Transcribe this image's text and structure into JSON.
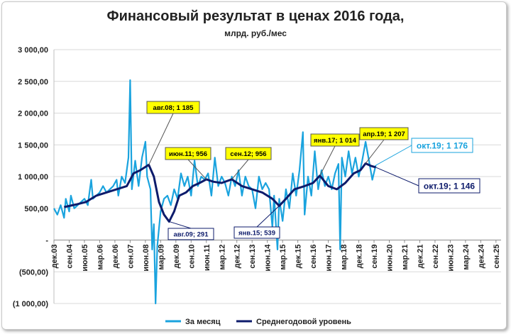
{
  "chart_data": {
    "type": "line",
    "title": "Финансовый результат в ценах 2016 года,",
    "subtitle": "млрд. руб./мес",
    "y_ticks": [
      "3 000,00",
      "2 500,00",
      "2 000,00",
      "1 500,00",
      "1 000,00",
      "500,00",
      "-",
      "(500,00)",
      "(1 000,00)"
    ],
    "ylim": [
      -1000,
      3000
    ],
    "x_range": [
      "2003-12",
      "2025-12"
    ],
    "x_ticks": [
      "дек.03",
      "сен.04",
      "июн.05",
      "мар.06",
      "дек.06",
      "сен.07",
      "июн.08",
      "мар.09",
      "дек.09",
      "сен.10",
      "июн.11",
      "мар.12",
      "дек.12",
      "сен.13",
      "июн.14",
      "мар.15",
      "дек.15",
      "сен.16",
      "июн.17",
      "мар.18",
      "дек.18",
      "сен.19",
      "июн.20",
      "мар.21",
      "дек.21",
      "сен.22",
      "июн.23",
      "мар.24",
      "дек.24",
      "сен.25"
    ],
    "legend_position": "bottom",
    "colors": {
      "monthly": "#1aa3de",
      "average": "#0d1b6b",
      "label_bg": "#ffff00"
    },
    "series": [
      {
        "name": "За месяц",
        "points": [
          [
            "2003-12",
            500
          ],
          [
            "2004-02",
            400
          ],
          [
            "2004-04",
            550
          ],
          [
            "2004-06",
            350
          ],
          [
            "2004-07",
            650
          ],
          [
            "2004-09",
            450
          ],
          [
            "2004-10",
            700
          ],
          [
            "2004-12",
            500
          ],
          [
            "2005-02",
            550
          ],
          [
            "2005-04",
            600
          ],
          [
            "2005-06",
            650
          ],
          [
            "2005-08",
            550
          ],
          [
            "2005-10",
            950
          ],
          [
            "2005-11",
            650
          ],
          [
            "2006-01",
            700
          ],
          [
            "2006-03",
            750
          ],
          [
            "2006-05",
            850
          ],
          [
            "2006-07",
            750
          ],
          [
            "2006-09",
            800
          ],
          [
            "2006-11",
            850
          ],
          [
            "2007-01",
            950
          ],
          [
            "2007-02",
            700
          ],
          [
            "2007-04",
            1000
          ],
          [
            "2007-06",
            900
          ],
          [
            "2007-08",
            1300
          ],
          [
            "2007-09",
            2520
          ],
          [
            "2007-10",
            800
          ],
          [
            "2007-12",
            1250
          ],
          [
            "2008-02",
            850
          ],
          [
            "2008-04",
            1300
          ],
          [
            "2008-06",
            1550
          ],
          [
            "2008-07",
            1000
          ],
          [
            "2008-09",
            800
          ],
          [
            "2008-10",
            -150
          ],
          [
            "2008-11",
            250
          ],
          [
            "2008-12",
            -1000
          ],
          [
            "2009-01",
            -100
          ],
          [
            "2009-03",
            450
          ],
          [
            "2009-05",
            650
          ],
          [
            "2009-07",
            700
          ],
          [
            "2009-09",
            550
          ],
          [
            "2009-11",
            800
          ],
          [
            "2010-01",
            650
          ],
          [
            "2010-03",
            1050
          ],
          [
            "2010-05",
            850
          ],
          [
            "2010-07",
            1000
          ],
          [
            "2010-09",
            700
          ],
          [
            "2010-11",
            1250
          ],
          [
            "2011-01",
            850
          ],
          [
            "2011-03",
            1000
          ],
          [
            "2011-05",
            950
          ],
          [
            "2011-07",
            1050
          ],
          [
            "2011-09",
            700
          ],
          [
            "2011-11",
            1300
          ],
          [
            "2012-01",
            850
          ],
          [
            "2012-03",
            1000
          ],
          [
            "2012-05",
            900
          ],
          [
            "2012-07",
            700
          ],
          [
            "2012-09",
            1000
          ],
          [
            "2012-11",
            850
          ],
          [
            "2013-01",
            1100
          ],
          [
            "2013-03",
            700
          ],
          [
            "2013-05",
            1000
          ],
          [
            "2013-07",
            850
          ],
          [
            "2013-09",
            800
          ],
          [
            "2013-11",
            500
          ],
          [
            "2014-01",
            1000
          ],
          [
            "2014-03",
            800
          ],
          [
            "2014-05",
            900
          ],
          [
            "2014-07",
            800
          ],
          [
            "2014-09",
            200
          ],
          [
            "2014-10",
            700
          ],
          [
            "2014-12",
            -150
          ],
          [
            "2015-01",
            650
          ],
          [
            "2015-03",
            300
          ],
          [
            "2015-05",
            800
          ],
          [
            "2015-07",
            500
          ],
          [
            "2015-09",
            1050
          ],
          [
            "2015-11",
            700
          ],
          [
            "2016-01",
            1100
          ],
          [
            "2016-03",
            1700
          ],
          [
            "2016-04",
            400
          ],
          [
            "2016-06",
            1000
          ],
          [
            "2016-08",
            700
          ],
          [
            "2016-10",
            1400
          ],
          [
            "2016-12",
            800
          ],
          [
            "2017-02",
            1100
          ],
          [
            "2017-04",
            850
          ],
          [
            "2017-06",
            1000
          ],
          [
            "2017-08",
            800
          ],
          [
            "2017-10",
            1050
          ],
          [
            "2017-12",
            1200
          ],
          [
            "2018-01",
            -150
          ],
          [
            "2018-02",
            1300
          ],
          [
            "2018-04",
            1000
          ],
          [
            "2018-06",
            1400
          ],
          [
            "2018-08",
            1050
          ],
          [
            "2018-10",
            1300
          ],
          [
            "2018-12",
            1000
          ],
          [
            "2019-02",
            1250
          ],
          [
            "2019-04",
            1550
          ],
          [
            "2019-06",
            1250
          ],
          [
            "2019-08",
            950
          ],
          [
            "2019-10",
            1176
          ]
        ]
      },
      {
        "name": "Среднегодовой уровень",
        "points": [
          [
            "2004-06",
            520
          ],
          [
            "2005-01",
            560
          ],
          [
            "2005-07",
            600
          ],
          [
            "2006-01",
            700
          ],
          [
            "2006-07",
            750
          ],
          [
            "2007-01",
            800
          ],
          [
            "2007-07",
            850
          ],
          [
            "2007-11",
            1050
          ],
          [
            "2008-03",
            1100
          ],
          [
            "2008-08",
            1185
          ],
          [
            "2008-11",
            1000
          ],
          [
            "2009-02",
            600
          ],
          [
            "2009-05",
            400
          ],
          [
            "2009-08",
            291
          ],
          [
            "2009-11",
            450
          ],
          [
            "2010-02",
            700
          ],
          [
            "2010-06",
            750
          ],
          [
            "2010-10",
            850
          ],
          [
            "2011-02",
            900
          ],
          [
            "2011-06",
            956
          ],
          [
            "2011-10",
            920
          ],
          [
            "2012-03",
            900
          ],
          [
            "2012-09",
            956
          ],
          [
            "2013-03",
            850
          ],
          [
            "2013-09",
            800
          ],
          [
            "2014-03",
            750
          ],
          [
            "2014-09",
            650
          ],
          [
            "2015-01",
            539
          ],
          [
            "2015-05",
            650
          ],
          [
            "2015-10",
            800
          ],
          [
            "2016-04",
            850
          ],
          [
            "2016-09",
            900
          ],
          [
            "2017-01",
            1014
          ],
          [
            "2017-06",
            850
          ],
          [
            "2017-11",
            800
          ],
          [
            "2018-04",
            900
          ],
          [
            "2018-09",
            1050
          ],
          [
            "2019-01",
            1100
          ],
          [
            "2019-04",
            1207
          ],
          [
            "2019-07",
            1170
          ],
          [
            "2019-10",
            1146
          ]
        ]
      }
    ],
    "annotations": [
      {
        "text": "авг.08; 1 185",
        "date": "2008-08",
        "value": 1185,
        "style": "yellow"
      },
      {
        "text": "авг.09; 291",
        "date": "2009-08",
        "value": 291,
        "style": "white"
      },
      {
        "text": "июн.11; 956",
        "date": "2011-06",
        "value": 956,
        "style": "yellow"
      },
      {
        "text": "сен.12; 956",
        "date": "2012-09",
        "value": 956,
        "style": "yellow"
      },
      {
        "text": "янв.15; 539",
        "date": "2015-01",
        "value": 539,
        "style": "white"
      },
      {
        "text": "янв.17; 1 014",
        "date": "2017-01",
        "value": 1014,
        "style": "yellow"
      },
      {
        "text": "апр.19; 1 207",
        "date": "2019-04",
        "value": 1207,
        "style": "yellow"
      },
      {
        "text": "окт.19;  1 176",
        "date": "2019-10",
        "value": 1176,
        "style": "monthly"
      },
      {
        "text": "окт.19; 1 146",
        "date": "2019-10",
        "value": 1146,
        "style": "average"
      }
    ]
  }
}
